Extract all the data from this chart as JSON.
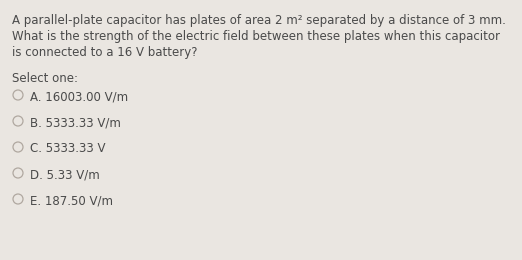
{
  "background_color": "#eae6e1",
  "text_color": "#4a4a4a",
  "question_lines": [
    "A parallel-plate capacitor has plates of area 2 m² separated by a distance of 3 mm.",
    "What is the strength of the electric field between these plates when this capacitor",
    "is connected to a 16 V battery?"
  ],
  "select_one_label": "Select one:",
  "options": [
    "A. 16003.00 V/m",
    "B. 5333.33 V/m",
    "C. 5333.33 V",
    "D. 5.33 V/m",
    "E. 187.50 V/m"
  ],
  "font_size_question": 8.5,
  "font_size_options": 8.5,
  "font_size_select": 8.5,
  "circle_color": "#b0a8a0",
  "font_family": "DejaVu Sans"
}
